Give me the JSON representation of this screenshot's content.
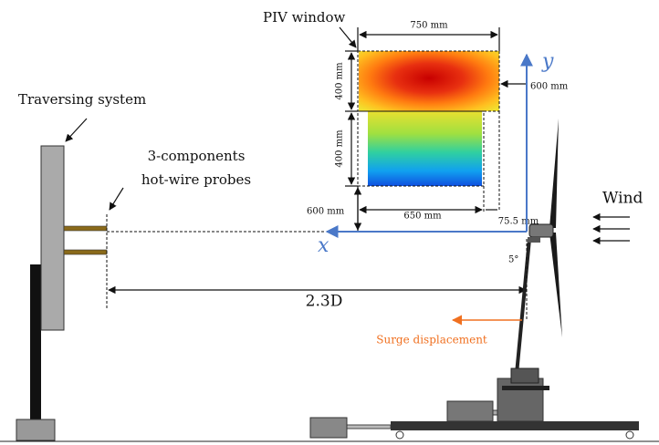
{
  "labels": {
    "piv_window": "PIV window",
    "traversing_system": "Traversing system",
    "probes": [
      "3-components",
      "hot-wire probes"
    ],
    "wind": "Wind",
    "surge": "Surge displacement",
    "distance": "2.3D",
    "tilt": "5°"
  },
  "axes": {
    "x": "x",
    "y": "y"
  },
  "dimensions": {
    "width_top": "750 mm",
    "height_top": "400 mm",
    "height_bottom": "400 mm",
    "offset_y": "600 mm",
    "offset_x": "600 mm",
    "width_bottom": "650 mm",
    "gap": "75.5 mm"
  }
}
